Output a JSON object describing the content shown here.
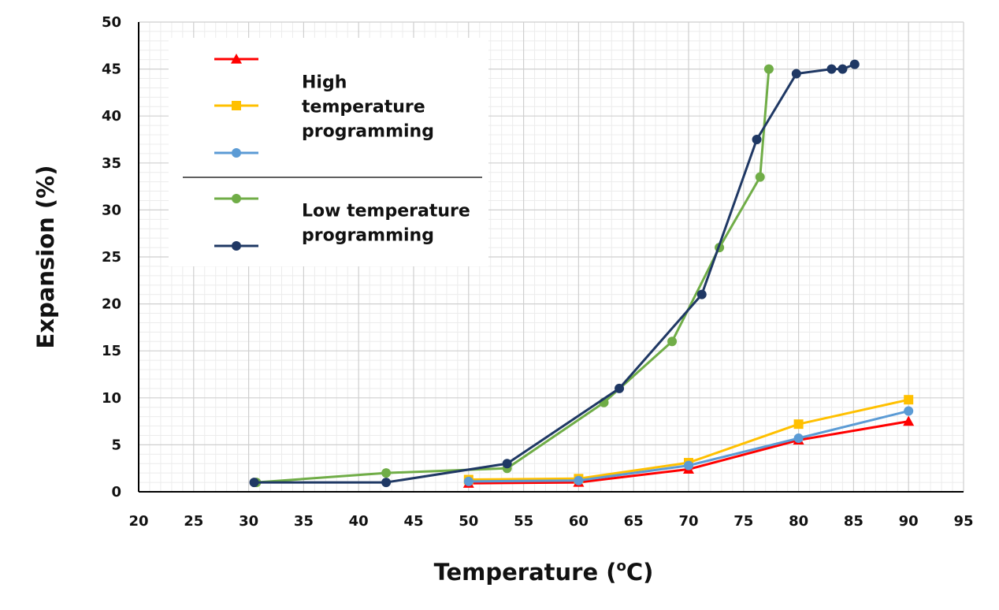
{
  "chart_data": {
    "type": "line",
    "xlabel": "Temperature (°C)",
    "xlabel_parts": {
      "prefix": "Temperature (",
      "sup": "o",
      "suffix": "C)"
    },
    "ylabel": "Expansion (%)",
    "xlim": [
      20,
      95
    ],
    "ylim": [
      0,
      50
    ],
    "x_ticks": [
      20,
      25,
      30,
      35,
      40,
      45,
      50,
      55,
      60,
      65,
      70,
      75,
      80,
      85,
      90,
      95
    ],
    "y_ticks": [
      0,
      5,
      10,
      15,
      20,
      25,
      30,
      35,
      40,
      45,
      50
    ],
    "grid": true,
    "minor_grid": true,
    "legend_position": "top-left",
    "legend_groups": [
      {
        "label_lines": [
          "High",
          "temperature",
          "programming"
        ],
        "series_indices": [
          0,
          1,
          2
        ]
      },
      {
        "label_lines": [
          "Low temperature",
          "programming"
        ],
        "series_indices": [
          3,
          4
        ]
      }
    ],
    "series": [
      {
        "color": "#ff0000",
        "marker": "triangle",
        "x": [
          50,
          60,
          70,
          80,
          90
        ],
        "y": [
          0.9,
          1.0,
          2.4,
          5.5,
          7.5
        ]
      },
      {
        "color": "#ffc000",
        "marker": "square",
        "x": [
          50,
          60,
          70,
          80,
          90
        ],
        "y": [
          1.3,
          1.4,
          3.1,
          7.2,
          9.8
        ]
      },
      {
        "color": "#5b9bd5",
        "marker": "circle",
        "x": [
          50,
          60,
          70,
          80,
          90
        ],
        "y": [
          1.1,
          1.2,
          2.8,
          5.7,
          8.6
        ]
      },
      {
        "color": "#70ad47",
        "marker": "circle",
        "x": [
          30.7,
          42.5,
          53.5,
          62.3,
          68.5,
          72.8,
          76.5,
          77.3
        ],
        "y": [
          1.0,
          2.0,
          2.5,
          9.5,
          16.0,
          26.0,
          33.5,
          45.0
        ]
      },
      {
        "color": "#1f3864",
        "marker": "circle",
        "x": [
          30.5,
          42.5,
          53.5,
          63.7,
          71.2,
          76.2,
          79.8,
          83.0,
          84.0,
          85.1
        ],
        "y": [
          1.0,
          1.0,
          3.0,
          11.0,
          21.0,
          37.5,
          44.5,
          45.0,
          45.0,
          45.5
        ]
      }
    ]
  }
}
